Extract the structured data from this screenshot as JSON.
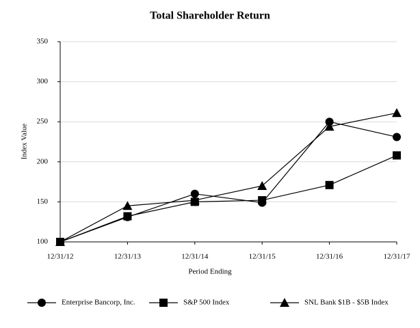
{
  "chart_data": {
    "type": "line",
    "title": "Total Shareholder Return",
    "x_label": "Period Ending",
    "y_label": "Index Value",
    "categories": [
      "12/31/12",
      "12/31/13",
      "12/31/14",
      "12/31/15",
      "12/31/16",
      "12/31/17"
    ],
    "series": [
      {
        "name": "Enterprise Bancorp, Inc.",
        "color": "#000000",
        "marker": "circle",
        "values": [
          100,
          131,
          160,
          149,
          250,
          231
        ]
      },
      {
        "name": "S&P 500 Index",
        "color": "#000000",
        "marker": "square",
        "values": [
          100,
          132,
          150,
          152,
          171,
          208
        ]
      },
      {
        "name": "SNL Bank $1B - $5B Index",
        "color": "#000000",
        "marker": "triangle",
        "values": [
          100,
          145,
          152,
          170,
          244,
          261
        ]
      }
    ],
    "ylim": [
      100,
      350
    ],
    "yticks": [
      100,
      150,
      200,
      250,
      300,
      350
    ],
    "grid": true,
    "legend": "bottom"
  }
}
